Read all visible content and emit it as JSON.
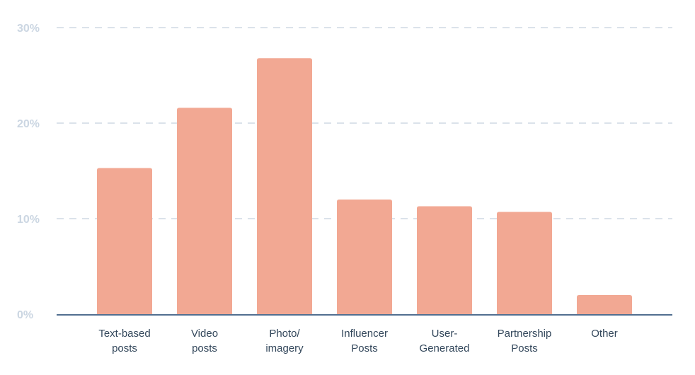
{
  "chart_data": {
    "type": "bar",
    "title": "",
    "xlabel": "",
    "ylabel": "",
    "categories": [
      [
        "Text-based",
        "posts"
      ],
      [
        "Video",
        "posts"
      ],
      [
        "Photo/",
        "imagery"
      ],
      [
        "Influencer",
        "Posts"
      ],
      [
        "User-",
        "Generated"
      ],
      [
        "Partnership",
        "Posts"
      ],
      [
        "Other"
      ]
    ],
    "values": [
      15.3,
      21.6,
      26.8,
      12.0,
      11.3,
      10.7,
      2.0
    ],
    "ylim": [
      0,
      30
    ],
    "yticks": [
      0,
      10,
      20,
      30
    ],
    "ytick_labels": [
      "0%",
      "10%",
      "20%",
      "30%"
    ],
    "grid": true,
    "bar_color": "#f2a893",
    "grid_color": "#dbe2ea",
    "axis_color": "#516f90"
  }
}
